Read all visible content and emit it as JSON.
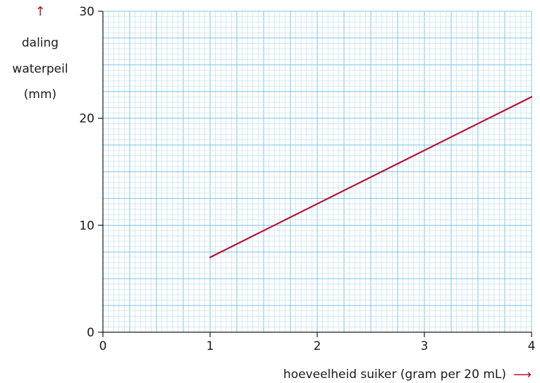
{
  "chart_data": {
    "type": "line",
    "ylabel_lines": [
      "daling",
      "waterpeil",
      "(mm)"
    ],
    "xlabel": "hoeveelheid suiker (gram per 20 mL)",
    "xlim": [
      0,
      4
    ],
    "ylim": [
      0,
      30
    ],
    "x_ticks": [
      "0",
      "1",
      "2",
      "3",
      "4"
    ],
    "y_ticks": [
      "0",
      "10",
      "20",
      "30"
    ],
    "grid": true,
    "series": [
      {
        "x": [
          1,
          4
        ],
        "y": [
          7,
          22
        ]
      }
    ],
    "colors": {
      "line": "#b5122e",
      "grid_minor": "#bfe0f2",
      "grid_major": "#7fc4e6",
      "arrow": "#b5122e"
    }
  }
}
